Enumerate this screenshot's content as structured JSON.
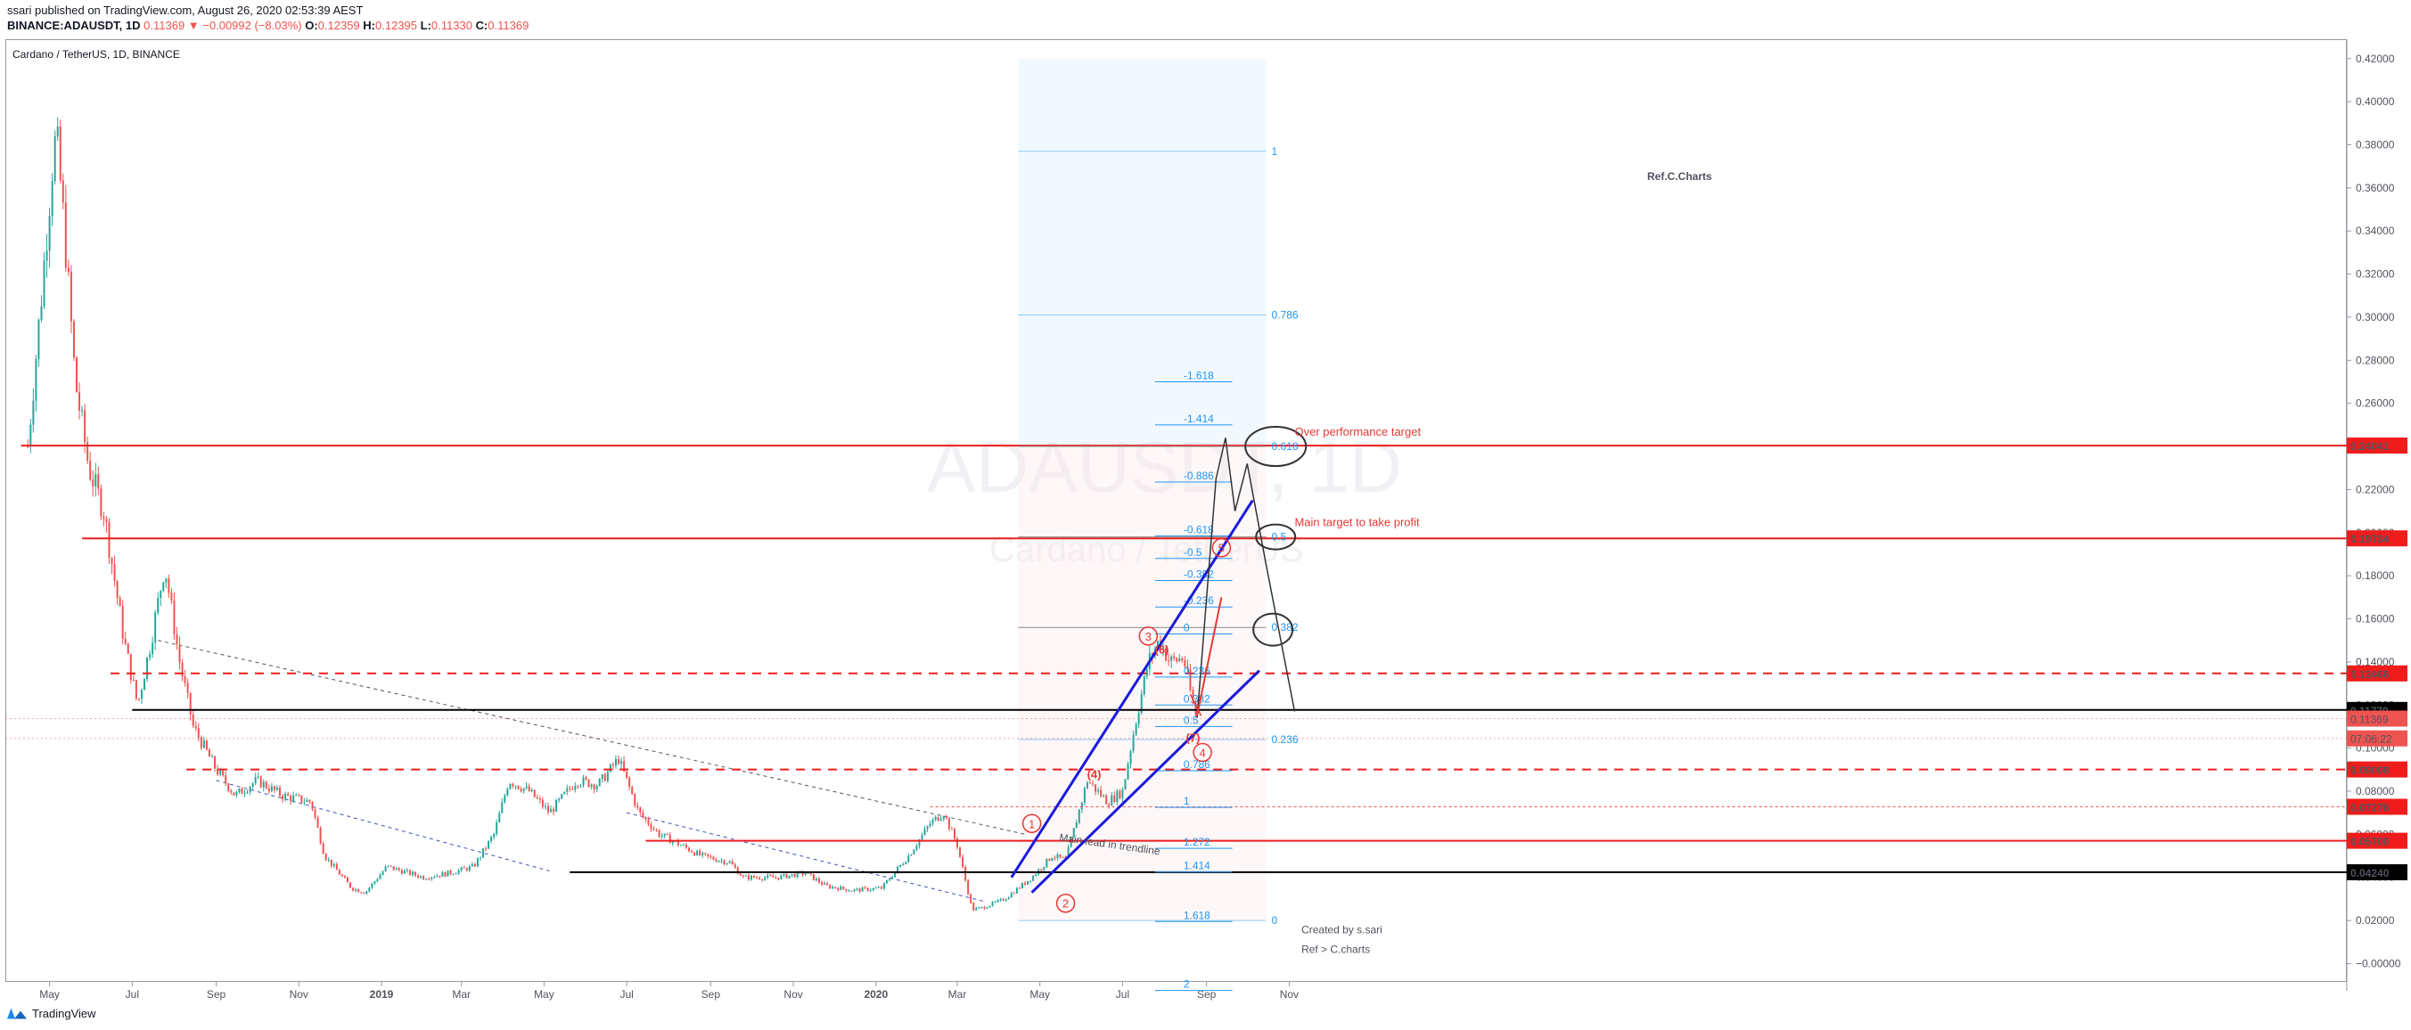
{
  "header": {
    "published": "ssari published on TradingView.com, August 26, 2020 02:53:39 AEST",
    "symbol": "BINANCE:ADAUSDT, 1D",
    "last": "0.11369",
    "change": "▼ −0.00992 (−8.03%)",
    "open_label": "O:",
    "open": "0.12359",
    "high_label": "H:",
    "high": "0.12395",
    "low_label": "L:",
    "low": "0.11330",
    "close_label": "C:",
    "close": "0.11369"
  },
  "chart_title": "Cardano / TetherUS, 1D, BINANCE",
  "watermark": {
    "ticker": "ADAUSDT, 1D",
    "name": "Cardano / TetherUS"
  },
  "footer": {
    "brand": "TradingView"
  },
  "colors": {
    "bullish": "#26a69a",
    "bearish": "#ef5350",
    "level": "#ef1c1c",
    "fib": "#2196f3",
    "channel": "#1a1adc"
  },
  "chart_data": {
    "type": "candlestick",
    "title": "Cardano / TetherUS, 1D, BINANCE",
    "x_ticks": [
      "May",
      "Jul",
      "Sep",
      "Nov",
      "2019",
      "Mar",
      "May",
      "Jul",
      "Sep",
      "Nov",
      "2020",
      "Mar",
      "May",
      "Jul",
      "Sep",
      "Nov"
    ],
    "y_ticks": [
      "0.42000",
      "0.40000",
      "0.38000",
      "0.36000",
      "0.34000",
      "0.32000",
      "0.30000",
      "0.28000",
      "0.26000",
      "0.24000",
      "0.22000",
      "0.20000",
      "0.18000",
      "0.16000",
      "0.14000",
      "0.12000",
      "0.10000",
      "0.08000",
      "0.06000",
      "0.04000",
      "0.02000",
      "−0.00000"
    ],
    "y_range": [
      -0.0085,
      0.429
    ],
    "price_path": [
      [
        "2018-04-15",
        0.24
      ],
      [
        "2018-04-25",
        0.31
      ],
      [
        "2018-05-03",
        0.37
      ],
      [
        "2018-05-06",
        0.385
      ],
      [
        "2018-05-12",
        0.34
      ],
      [
        "2018-05-20",
        0.27
      ],
      [
        "2018-05-30",
        0.23
      ],
      [
        "2018-06-10",
        0.21
      ],
      [
        "2018-06-25",
        0.15
      ],
      [
        "2018-07-05",
        0.12
      ],
      [
        "2018-07-15",
        0.15
      ],
      [
        "2018-07-25",
        0.185
      ],
      [
        "2018-08-05",
        0.14
      ],
      [
        "2018-08-15",
        0.11
      ],
      [
        "2018-09-01",
        0.09
      ],
      [
        "2018-09-15",
        0.078
      ],
      [
        "2018-10-01",
        0.085
      ],
      [
        "2018-10-20",
        0.078
      ],
      [
        "2018-11-10",
        0.075
      ],
      [
        "2018-11-20",
        0.05
      ],
      [
        "2018-12-10",
        0.035
      ],
      [
        "2018-12-20",
        0.033
      ],
      [
        "2019-01-05",
        0.045
      ],
      [
        "2019-02-01",
        0.04
      ],
      [
        "2019-02-20",
        0.042
      ],
      [
        "2019-03-10",
        0.045
      ],
      [
        "2019-03-25",
        0.06
      ],
      [
        "2019-04-05",
        0.085
      ],
      [
        "2019-04-20",
        0.08
      ],
      [
        "2019-05-05",
        0.07
      ],
      [
        "2019-05-25",
        0.085
      ],
      [
        "2019-06-10",
        0.083
      ],
      [
        "2019-06-25",
        0.095
      ],
      [
        "2019-07-10",
        0.07
      ],
      [
        "2019-07-25",
        0.06
      ],
      [
        "2019-08-10",
        0.055
      ],
      [
        "2019-08-25",
        0.05
      ],
      [
        "2019-09-15",
        0.047
      ],
      [
        "2019-09-25",
        0.04
      ],
      [
        "2019-10-20",
        0.04
      ],
      [
        "2019-11-10",
        0.042
      ],
      [
        "2019-11-25",
        0.036
      ],
      [
        "2019-12-15",
        0.034
      ],
      [
        "2020-01-05",
        0.035
      ],
      [
        "2020-01-25",
        0.05
      ],
      [
        "2020-02-10",
        0.065
      ],
      [
        "2020-02-20",
        0.07
      ],
      [
        "2020-03-01",
        0.055
      ],
      [
        "2020-03-12",
        0.025
      ],
      [
        "2020-03-20",
        0.026
      ],
      [
        "2020-04-05",
        0.03
      ],
      [
        "2020-04-25",
        0.04
      ],
      [
        "2020-05-10",
        0.05
      ],
      [
        "2020-05-20",
        0.048
      ],
      [
        "2020-06-05",
        0.085
      ],
      [
        "2020-06-20",
        0.075
      ],
      [
        "2020-07-01",
        0.08
      ],
      [
        "2020-07-10",
        0.11
      ],
      [
        "2020-07-20",
        0.14
      ],
      [
        "2020-07-28",
        0.15
      ],
      [
        "2020-08-05",
        0.14
      ],
      [
        "2020-08-15",
        0.142
      ],
      [
        "2020-08-22",
        0.12
      ],
      [
        "2020-08-25",
        0.11369
      ]
    ],
    "horizontal_levels": [
      {
        "price": 0.24041,
        "label": "0.24041",
        "style": "solid",
        "color": "#ef1c1c",
        "from": "2018-04-10"
      },
      {
        "price": 0.19734,
        "label": "0.19734",
        "style": "solid",
        "color": "#ef1c1c",
        "from": "2018-05-25"
      },
      {
        "price": 0.13466,
        "label": "0.13466",
        "style": "dashed",
        "color": "#ef1c1c",
        "from": "2018-06-15"
      },
      {
        "price": 0.1177,
        "label": "0.11770",
        "style": "solid",
        "color": "#000000",
        "from": "2018-07-01"
      },
      {
        "price": 0.09008,
        "label": "0.09008",
        "style": "dashed",
        "color": "#ef1c1c",
        "from": "2018-08-10"
      },
      {
        "price": 0.057,
        "label": "0.05700",
        "style": "solid",
        "color": "#ef1c1c",
        "from": "2019-07-15"
      },
      {
        "price": 0.0424,
        "label": "0.04240",
        "style": "solid",
        "color": "#000000",
        "from": "2019-05-20"
      },
      {
        "price": 0.07276,
        "label": "0.07276",
        "style": "dotted",
        "color": "#ef5350",
        "from": "2020-02-10"
      }
    ],
    "price_labels": [
      {
        "price": 0.11369,
        "label": "0.11369",
        "color": "#ef5350"
      },
      {
        "price": 0.1045,
        "label": "07:06:22",
        "color": "#ef5350"
      }
    ],
    "fib_right": [
      {
        "ratio": "1",
        "price": 0.377
      },
      {
        "ratio": "0.786",
        "price": 0.301
      },
      {
        "ratio": "0.618",
        "price": 0.24
      },
      {
        "ratio": "0.5",
        "price": 0.198
      },
      {
        "ratio": "0.382",
        "price": 0.156
      },
      {
        "ratio": "0.236",
        "price": 0.104
      },
      {
        "ratio": "0",
        "price": 0.02
      }
    ],
    "fib_ext": [
      {
        "ratio": "-1.618",
        "price": 0.27
      },
      {
        "ratio": "-1.414",
        "price": 0.25
      },
      {
        "ratio": "-0.886",
        "price": 0.2235
      },
      {
        "ratio": "-0.618",
        "price": 0.1985
      },
      {
        "ratio": "-0.5",
        "price": 0.188
      },
      {
        "ratio": "-0.382",
        "price": 0.1778
      },
      {
        "ratio": "-0.236",
        "price": 0.1655
      },
      {
        "ratio": "0",
        "price": 0.153
      },
      {
        "ratio": "0.236",
        "price": 0.133
      },
      {
        "ratio": "0.382",
        "price": 0.12
      },
      {
        "ratio": "0.5",
        "price": 0.11
      },
      {
        "ratio": "0.786",
        "price": 0.0895
      },
      {
        "ratio": "1",
        "price": 0.0725
      },
      {
        "ratio": "1.272",
        "price": 0.0535
      },
      {
        "ratio": "1.414",
        "price": 0.0425
      },
      {
        "ratio": "1.618",
        "price": 0.0195
      },
      {
        "ratio": "2",
        "price": -0.0125
      }
    ],
    "wave_labels": [
      "1",
      "2",
      "3",
      "4",
      "5"
    ],
    "minor_labels": [
      "(4)",
      "(6)",
      "(7)"
    ],
    "annotations": {
      "over_performance": "Over performance target",
      "main_target": "Main target to take profit",
      "trendline": "Main lead in trendline",
      "ref": "Ref.C.Charts",
      "credit_1": "Created by s.sari",
      "credit_2": "Ref > C.charts"
    }
  }
}
